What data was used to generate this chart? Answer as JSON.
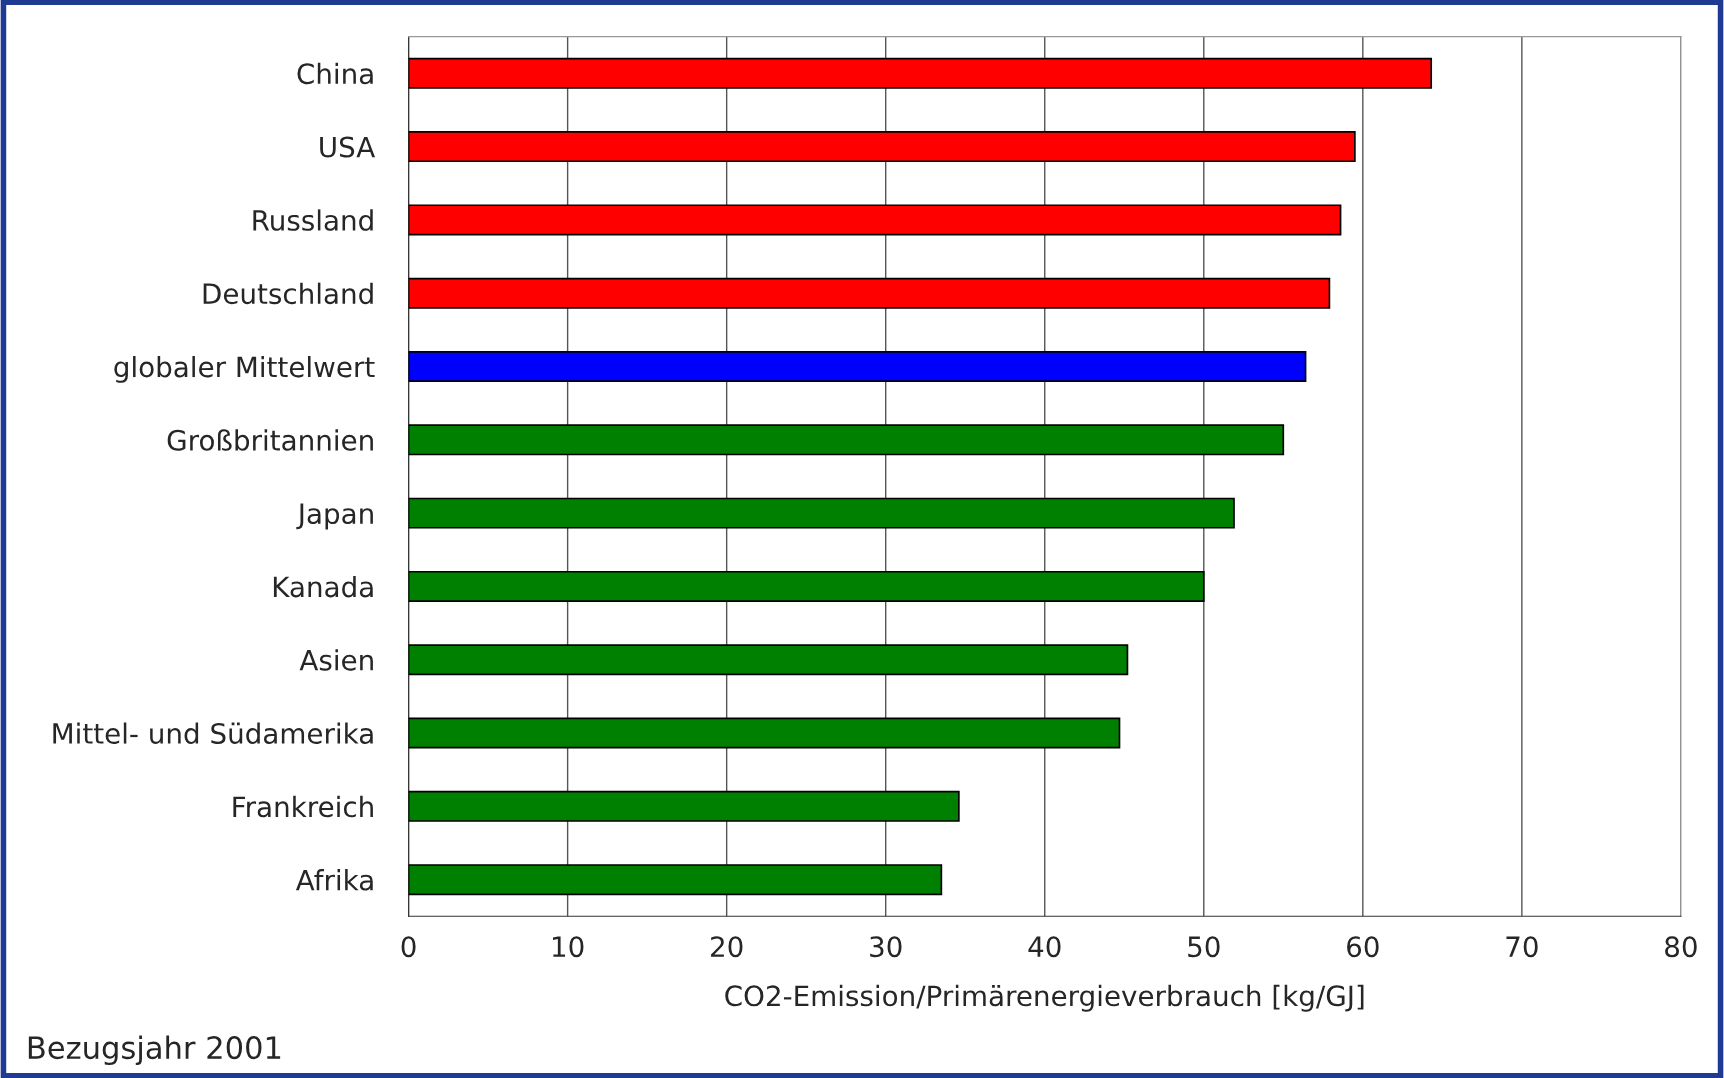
{
  "chart_data": {
    "type": "bar",
    "orientation": "horizontal",
    "categories": [
      "China",
      "USA",
      "Russland",
      "Deutschland",
      "globaler Mittelwert",
      "Großbritannien",
      "Japan",
      "Kanada",
      "Asien",
      "Mittel- und Südamerika",
      "Frankreich",
      "Afrika"
    ],
    "values": [
      64.3,
      59.5,
      58.6,
      57.9,
      56.4,
      55.0,
      51.9,
      50.0,
      45.2,
      44.7,
      34.6,
      33.5
    ],
    "colors": [
      "#ff0000",
      "#ff0000",
      "#ff0000",
      "#ff0000",
      "#0000ff",
      "#008000",
      "#008000",
      "#008000",
      "#008000",
      "#008000",
      "#008000",
      "#008000"
    ],
    "xlabel": "CO2-Emission/Primärenergieverbrauch [kg/GJ]",
    "xlim": [
      0,
      80
    ],
    "xticks": [
      0,
      10,
      20,
      30,
      40,
      50,
      60,
      70,
      80
    ],
    "grid": "x",
    "legend": false,
    "annotations": [
      "Bezugsjahr 2001"
    ]
  }
}
